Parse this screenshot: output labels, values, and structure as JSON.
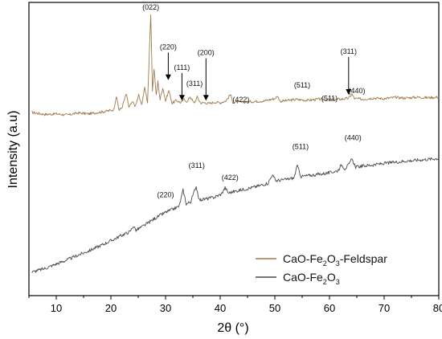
{
  "chart_data": {
    "type": "line",
    "title": "",
    "xlabel": "2θ (°)",
    "ylabel": "Intensity (a.u)",
    "xlim": [
      5,
      80
    ],
    "xticks": [
      "10",
      "20",
      "30",
      "40",
      "50",
      "60",
      "70",
      "80"
    ],
    "xtick_values": [
      10,
      20,
      30,
      40,
      50,
      60,
      70,
      80
    ],
    "ylim": [
      0,
      100
    ],
    "y_ticks_shown": false,
    "grid": false,
    "legend_position": "bottom-right",
    "series": [
      {
        "name": "CaO-Fe2O3-Feldspar",
        "legend_main": "CaO-Fe",
        "legend_sub1": "2",
        "legend_mid": "O",
        "legend_sub2": "3",
        "legend_tail": "-Feldspar",
        "color": "#a07a4a",
        "points": [
          [
            5.5,
            62.5
          ],
          [
            8,
            61.8
          ],
          [
            10,
            62.0
          ],
          [
            12,
            61.6
          ],
          [
            14,
            62.3
          ],
          [
            16,
            62.0
          ],
          [
            18,
            62.6
          ],
          [
            19.5,
            63.0
          ],
          [
            20.5,
            63.4
          ],
          [
            21,
            68.0
          ],
          [
            21.5,
            63.3
          ],
          [
            22,
            64.0
          ],
          [
            22.8,
            68.8
          ],
          [
            23.3,
            64.3
          ],
          [
            24,
            66.0
          ],
          [
            24.5,
            64.6
          ],
          [
            25.1,
            68.5
          ],
          [
            25.6,
            65.0
          ],
          [
            26.2,
            71.0
          ],
          [
            26.7,
            66.0
          ],
          [
            27.3,
            95.8
          ],
          [
            27.6,
            70.0
          ],
          [
            27.9,
            77.5
          ],
          [
            28.3,
            68.2
          ],
          [
            28.6,
            73.0
          ],
          [
            29.0,
            66.8
          ],
          [
            29.5,
            71.0
          ],
          [
            30.0,
            66.3
          ],
          [
            30.6,
            70.0
          ],
          [
            31.2,
            65.6
          ],
          [
            32.0,
            66.6
          ],
          [
            32.8,
            65.8
          ],
          [
            33.4,
            67.0
          ],
          [
            34.0,
            66.1
          ],
          [
            34.5,
            67.9
          ],
          [
            35.2,
            65.6
          ],
          [
            35.8,
            67.7
          ],
          [
            36.4,
            65.7
          ],
          [
            37.2,
            65.8
          ],
          [
            38.0,
            65.5
          ],
          [
            39.0,
            66.0
          ],
          [
            40.0,
            65.8
          ],
          [
            41.0,
            66.4
          ],
          [
            41.9,
            68.6
          ],
          [
            42.3,
            66.0
          ],
          [
            44.0,
            65.9
          ],
          [
            46.0,
            66.2
          ],
          [
            48.0,
            66.4
          ],
          [
            50.0,
            67.2
          ],
          [
            50.5,
            68.0
          ],
          [
            51.0,
            66.3
          ],
          [
            52.0,
            66.5
          ],
          [
            54.0,
            66.9
          ],
          [
            56.0,
            66.6
          ],
          [
            58.0,
            67.0
          ],
          [
            60.0,
            66.8
          ],
          [
            62.0,
            67.0
          ],
          [
            63.5,
            67.3
          ],
          [
            64.1,
            68.7
          ],
          [
            64.6,
            67.2
          ],
          [
            66.0,
            67.0
          ],
          [
            68.0,
            67.4
          ],
          [
            70.0,
            67.2
          ],
          [
            72.0,
            67.6
          ],
          [
            74.0,
            67.4
          ],
          [
            76.0,
            67.7
          ],
          [
            78.0,
            67.5
          ],
          [
            80.0,
            67.7
          ]
        ]
      },
      {
        "name": "CaO-Fe2O3",
        "legend_main": "CaO-Fe",
        "legend_sub1": "2",
        "legend_mid": "O",
        "legend_sub2": "3",
        "legend_tail": "",
        "color": "#4a4a4a",
        "points": [
          [
            5.5,
            8.0
          ],
          [
            8,
            9.3
          ],
          [
            10,
            10.8
          ],
          [
            12,
            12.2
          ],
          [
            14,
            13.8
          ],
          [
            16,
            15.3
          ],
          [
            18,
            17.0
          ],
          [
            20,
            18.7
          ],
          [
            22,
            20.6
          ],
          [
            23.5,
            21.8
          ],
          [
            24.1,
            23.8
          ],
          [
            24.6,
            22.3
          ],
          [
            26,
            23.8
          ],
          [
            28,
            26.3
          ],
          [
            30,
            28.4
          ],
          [
            31.5,
            29.6
          ],
          [
            32.5,
            30.5
          ],
          [
            33.2,
            36.0
          ],
          [
            33.8,
            31.3
          ],
          [
            34.6,
            32.0
          ],
          [
            35.6,
            37.3
          ],
          [
            36.2,
            32.6
          ],
          [
            37.5,
            33.0
          ],
          [
            39,
            33.6
          ],
          [
            40.2,
            34.6
          ],
          [
            40.9,
            36.8
          ],
          [
            41.5,
            35.0
          ],
          [
            43,
            35.7
          ],
          [
            45,
            36.5
          ],
          [
            47,
            37.4
          ],
          [
            48.8,
            38.4
          ],
          [
            49.5,
            41.2
          ],
          [
            50.2,
            39.2
          ],
          [
            52,
            39.6
          ],
          [
            53.5,
            40.1
          ],
          [
            54.1,
            44.3
          ],
          [
            54.8,
            40.6
          ],
          [
            56,
            40.9
          ],
          [
            58,
            41.4
          ],
          [
            60,
            41.9
          ],
          [
            61.5,
            42.6
          ],
          [
            62.2,
            44.6
          ],
          [
            62.8,
            43.3
          ],
          [
            63.6,
            44.8
          ],
          [
            64.1,
            46.6
          ],
          [
            64.8,
            43.8
          ],
          [
            66,
            44.2
          ],
          [
            68,
            44.6
          ],
          [
            70,
            45.1
          ],
          [
            72,
            45.5
          ],
          [
            74,
            45.9
          ],
          [
            76,
            46.2
          ],
          [
            78,
            46.5
          ],
          [
            80,
            46.8
          ]
        ]
      }
    ],
    "annotations": [
      {
        "label": "(022)",
        "x": 27.3,
        "y": 97.5
      },
      {
        "label": "(220)",
        "x": 30.5,
        "y": 84.0,
        "arrow_to": 73.5
      },
      {
        "label": "(111)",
        "x": 33.0,
        "y": 77.0,
        "arrow_to": 66.5
      },
      {
        "label": "(200)",
        "x": 37.4,
        "y": 82.0,
        "arrow_to": 66.5
      },
      {
        "label": "(311)",
        "x": 35.3,
        "y": 71.5
      },
      {
        "label": "(422)",
        "x": 43.8,
        "y": 66.0
      },
      {
        "label": "(511)",
        "x": 55.0,
        "y": 71.0
      },
      {
        "label": "(511)",
        "x": 60.0,
        "y": 66.5
      },
      {
        "label": "(311)",
        "x": 63.5,
        "y": 82.5,
        "arrow_to": 68.5
      },
      {
        "label": "(440)",
        "x": 65.0,
        "y": 69.0
      },
      {
        "label": "(311)",
        "x": 35.7,
        "y": 43.5
      },
      {
        "label": "(422)",
        "x": 41.8,
        "y": 39.5
      },
      {
        "label": "(220)",
        "x": 30.0,
        "y": 33.5
      },
      {
        "label": "(511)",
        "x": 54.7,
        "y": 50.0
      },
      {
        "label": "(440)",
        "x": 64.3,
        "y": 53.0
      }
    ]
  }
}
